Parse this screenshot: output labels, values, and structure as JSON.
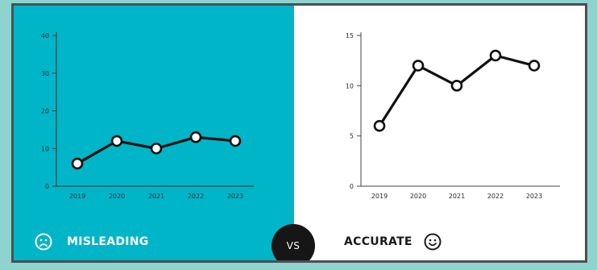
{
  "chart_data": [
    {
      "type": "line",
      "panel_label": "MISLEADING",
      "x": [
        "2019",
        "2020",
        "2021",
        "2022",
        "2023"
      ],
      "values": [
        6,
        12,
        10,
        13,
        12
      ],
      "ylim": [
        0,
        40
      ],
      "yticks": [
        "0",
        "10",
        "20",
        "30",
        "40"
      ],
      "grid": false,
      "background": "#00b5c7"
    },
    {
      "type": "line",
      "panel_label": "ACCURATE",
      "x": [
        "2019",
        "2020",
        "2021",
        "2022",
        "2023"
      ],
      "values": [
        6,
        12,
        10,
        13,
        12
      ],
      "ylim": [
        0,
        15
      ],
      "yticks": [
        "0",
        "5",
        "10",
        "15"
      ],
      "grid": false,
      "background": "#ffffff"
    }
  ],
  "labels": {
    "misleading": "MISLEADING",
    "accurate": "ACCURATE",
    "vs": "VS"
  },
  "icons": {
    "misleading": "sad-face-icon",
    "accurate": "happy-face-icon"
  },
  "colors": {
    "teal": "#00b5c7",
    "line": "#111111",
    "vs_badge": "#161616"
  }
}
